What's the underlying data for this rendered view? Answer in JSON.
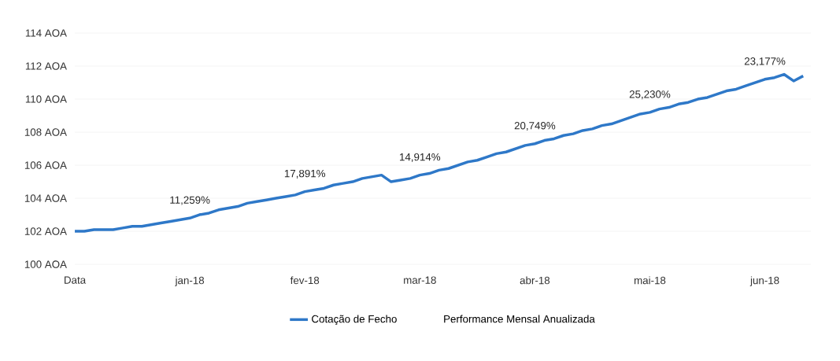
{
  "chart_data": {
    "type": "line",
    "categories": [
      "Data",
      null,
      null,
      null,
      null,
      null,
      null,
      null,
      null,
      null,
      null,
      null,
      "jan-18",
      null,
      null,
      null,
      null,
      null,
      null,
      null,
      null,
      null,
      null,
      null,
      "fev-18",
      null,
      null,
      null,
      null,
      null,
      null,
      null,
      null,
      null,
      null,
      null,
      "mar-18",
      null,
      null,
      null,
      null,
      null,
      null,
      null,
      null,
      null,
      null,
      null,
      "abr-18",
      null,
      null,
      null,
      null,
      null,
      null,
      null,
      null,
      null,
      null,
      null,
      "mai-18",
      null,
      null,
      null,
      null,
      null,
      null,
      null,
      null,
      null,
      null,
      null,
      "jun-18",
      null,
      null,
      null,
      null
    ],
    "series": [
      {
        "name": "Cotação de Fecho",
        "color": "#2e78c8",
        "values": [
          102.0,
          102.0,
          102.1,
          102.1,
          102.1,
          102.2,
          102.3,
          102.3,
          102.4,
          102.5,
          102.6,
          102.7,
          102.8,
          103.0,
          103.1,
          103.3,
          103.4,
          103.5,
          103.7,
          103.8,
          103.9,
          104.0,
          104.1,
          104.2,
          104.4,
          104.5,
          104.6,
          104.8,
          104.9,
          105.0,
          105.2,
          105.3,
          105.4,
          105.0,
          105.1,
          105.2,
          105.4,
          105.5,
          105.7,
          105.8,
          106.0,
          106.2,
          106.3,
          106.5,
          106.7,
          106.8,
          107.0,
          107.2,
          107.3,
          107.5,
          107.6,
          107.8,
          107.9,
          108.1,
          108.2,
          108.4,
          108.5,
          108.7,
          108.9,
          109.1,
          109.2,
          109.4,
          109.5,
          109.7,
          109.8,
          110.0,
          110.1,
          110.3,
          110.5,
          110.6,
          110.8,
          111.0,
          111.2,
          111.3,
          111.5,
          111.1,
          111.4
        ]
      }
    ],
    "ylim": [
      100,
      114
    ],
    "yticks": [
      {
        "value": 100,
        "label": "100 AOA"
      },
      {
        "value": 102,
        "label": "102 AOA"
      },
      {
        "value": 104,
        "label": "104 AOA"
      },
      {
        "value": 106,
        "label": "106 AOA"
      },
      {
        "value": 108,
        "label": "108 AOA"
      },
      {
        "value": 110,
        "label": "110 AOA"
      },
      {
        "value": 112,
        "label": "112 AOA"
      },
      {
        "value": 114,
        "label": "114 AOA"
      }
    ],
    "grid": "y",
    "legend": "bottom",
    "marker": "none",
    "line_style": "solid",
    "annotations": [
      {
        "text": "11,259%",
        "x": "jan-18",
        "y": 102.8
      },
      {
        "text": "17,891%",
        "x": "fev-18",
        "y": 104.4
      },
      {
        "text": "14,914%",
        "x": "mar-18",
        "y": 105.4
      },
      {
        "text": "20,749%",
        "x": "abr-18",
        "y": 107.3
      },
      {
        "text": "25,230%",
        "x": "mai-18",
        "y": 109.2
      },
      {
        "text": "23,177%",
        "x": "jun-18",
        "y": 111.2
      },
      "Performance Mensal Anualizada"
    ]
  }
}
